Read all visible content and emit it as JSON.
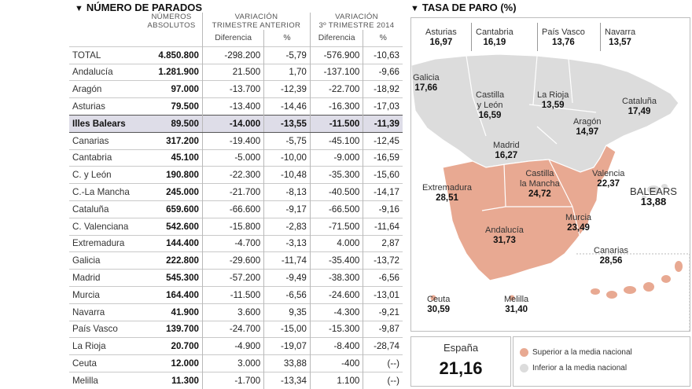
{
  "left_title": "NÚMERO DE PARADOS",
  "right_title": "TASA DE PARO (%)",
  "headers": {
    "abs": "NÚMEROS\nABSOLUTOS",
    "var_trim": "VARIACIÓN\nTRIMESTRE ANTERIOR",
    "var_2014": "VARIACIÓN\n3º TRIMESTRE 2014",
    "diff": "Diferencia",
    "pct": "%"
  },
  "chart_data": [
    {
      "type": "table",
      "title": "NÚMERO DE PARADOS",
      "columns": [
        "",
        "NÚMEROS ABSOLUTOS",
        "VARIACIÓN TRIMESTRE ANTERIOR Diferencia",
        "VARIACIÓN TRIMESTRE ANTERIOR %",
        "VARIACIÓN 3º TRIMESTRE 2014 Diferencia",
        "VARIACIÓN 3º TRIMESTRE 2014 %"
      ],
      "rows": [
        [
          "TOTAL",
          "4.850.800",
          "-298.200",
          "-5,79",
          "-576.900",
          "-10,63"
        ],
        [
          "Andalucía",
          "1.281.900",
          "21.500",
          "1,70",
          "-137.100",
          "-9,66"
        ],
        [
          "Aragón",
          "97.000",
          "-13.700",
          "-12,39",
          "-22.700",
          "-18,92"
        ],
        [
          "Asturias",
          "79.500",
          "-13.400",
          "-14,46",
          "-16.300",
          "-17,03"
        ],
        [
          "Illes Balears",
          "89.500",
          "-14.000",
          "-13,55",
          "-11.500",
          "-11,39"
        ],
        [
          "Canarias",
          "317.200",
          "-19.400",
          "-5,75",
          "-45.100",
          "-12,45"
        ],
        [
          "Cantabria",
          "45.100",
          "-5.000",
          "-10,00",
          "-9.000",
          "-16,59"
        ],
        [
          "C. y León",
          "190.800",
          "-22.300",
          "-10,48",
          "-35.300",
          "-15,60"
        ],
        [
          "C.-La Mancha",
          "245.000",
          "-21.700",
          "-8,13",
          "-40.500",
          "-14,17"
        ],
        [
          "Cataluña",
          "659.600",
          "-66.600",
          "-9,17",
          "-66.500",
          "-9,16"
        ],
        [
          "C. Valenciana",
          "542.600",
          "-15.800",
          "-2,83",
          "-71.500",
          "-11,64"
        ],
        [
          "Extremadura",
          "144.400",
          "-4.700",
          "-3,13",
          "4.000",
          "2,87"
        ],
        [
          "Galicia",
          "222.800",
          "-29.600",
          "-11,74",
          "-35.400",
          "-13,72"
        ],
        [
          "Madrid",
          "545.300",
          "-57.200",
          "-9,49",
          "-38.300",
          "-6,56"
        ],
        [
          "Murcia",
          "164.400",
          "-11.500",
          "-6,56",
          "-24.600",
          "-13,01"
        ],
        [
          "Navarra",
          "41.900",
          "3.600",
          "9,35",
          "-4.300",
          "-9,21"
        ],
        [
          "País Vasco",
          "139.700",
          "-24.700",
          "-15,00",
          "-15.300",
          "-9,87"
        ],
        [
          "La Rioja",
          "20.700",
          "-4.900",
          "-19,07",
          "-8.400",
          "-28,74"
        ],
        [
          "Ceuta",
          "12.000",
          "3.000",
          "33,88",
          "-400",
          "(--)"
        ],
        [
          "Melilla",
          "11.300",
          "-1.700",
          "-13,34",
          "1.100",
          "(--)"
        ]
      ],
      "highlight_row": 4
    },
    {
      "type": "map",
      "title": "TASA DE PARO (%)",
      "regions": [
        {
          "name": "Asturias",
          "value": "16,97",
          "above": false
        },
        {
          "name": "Cantabria",
          "value": "16,19",
          "above": false
        },
        {
          "name": "País Vasco",
          "value": "13,76",
          "above": false
        },
        {
          "name": "Navarra",
          "value": "13,57",
          "above": false
        },
        {
          "name": "Galicia",
          "value": "17,66",
          "above": false
        },
        {
          "name": "Castilla\ny León",
          "value": "16,59",
          "above": false
        },
        {
          "name": "La Rioja",
          "value": "13,59",
          "above": false
        },
        {
          "name": "Cataluña",
          "value": "17,49",
          "above": false
        },
        {
          "name": "Aragón",
          "value": "14,97",
          "above": false
        },
        {
          "name": "Madrid",
          "value": "16,27",
          "above": false
        },
        {
          "name": "Castilla\nla Mancha",
          "value": "24,72",
          "above": true
        },
        {
          "name": "Valencia",
          "value": "22,37",
          "above": true
        },
        {
          "name": "Extremadura",
          "value": "28,51",
          "above": true
        },
        {
          "name": "BALEARS",
          "value": "13,88",
          "above": false
        },
        {
          "name": "Murcia",
          "value": "23,49",
          "above": true
        },
        {
          "name": "Andalucía",
          "value": "31,73",
          "above": true
        },
        {
          "name": "Canarias",
          "value": "28,56",
          "above": true
        },
        {
          "name": "Ceuta",
          "value": "30,59",
          "above": true
        },
        {
          "name": "Melilla",
          "value": "31,40",
          "above": true
        }
      ]
    }
  ],
  "espana": {
    "name": "España",
    "value": "21,16"
  },
  "legend": {
    "above": "Superior a la media nacional",
    "below": "Inferior a la media nacional",
    "above_color": "#e8a992",
    "below_color": "#dcdcdc"
  }
}
